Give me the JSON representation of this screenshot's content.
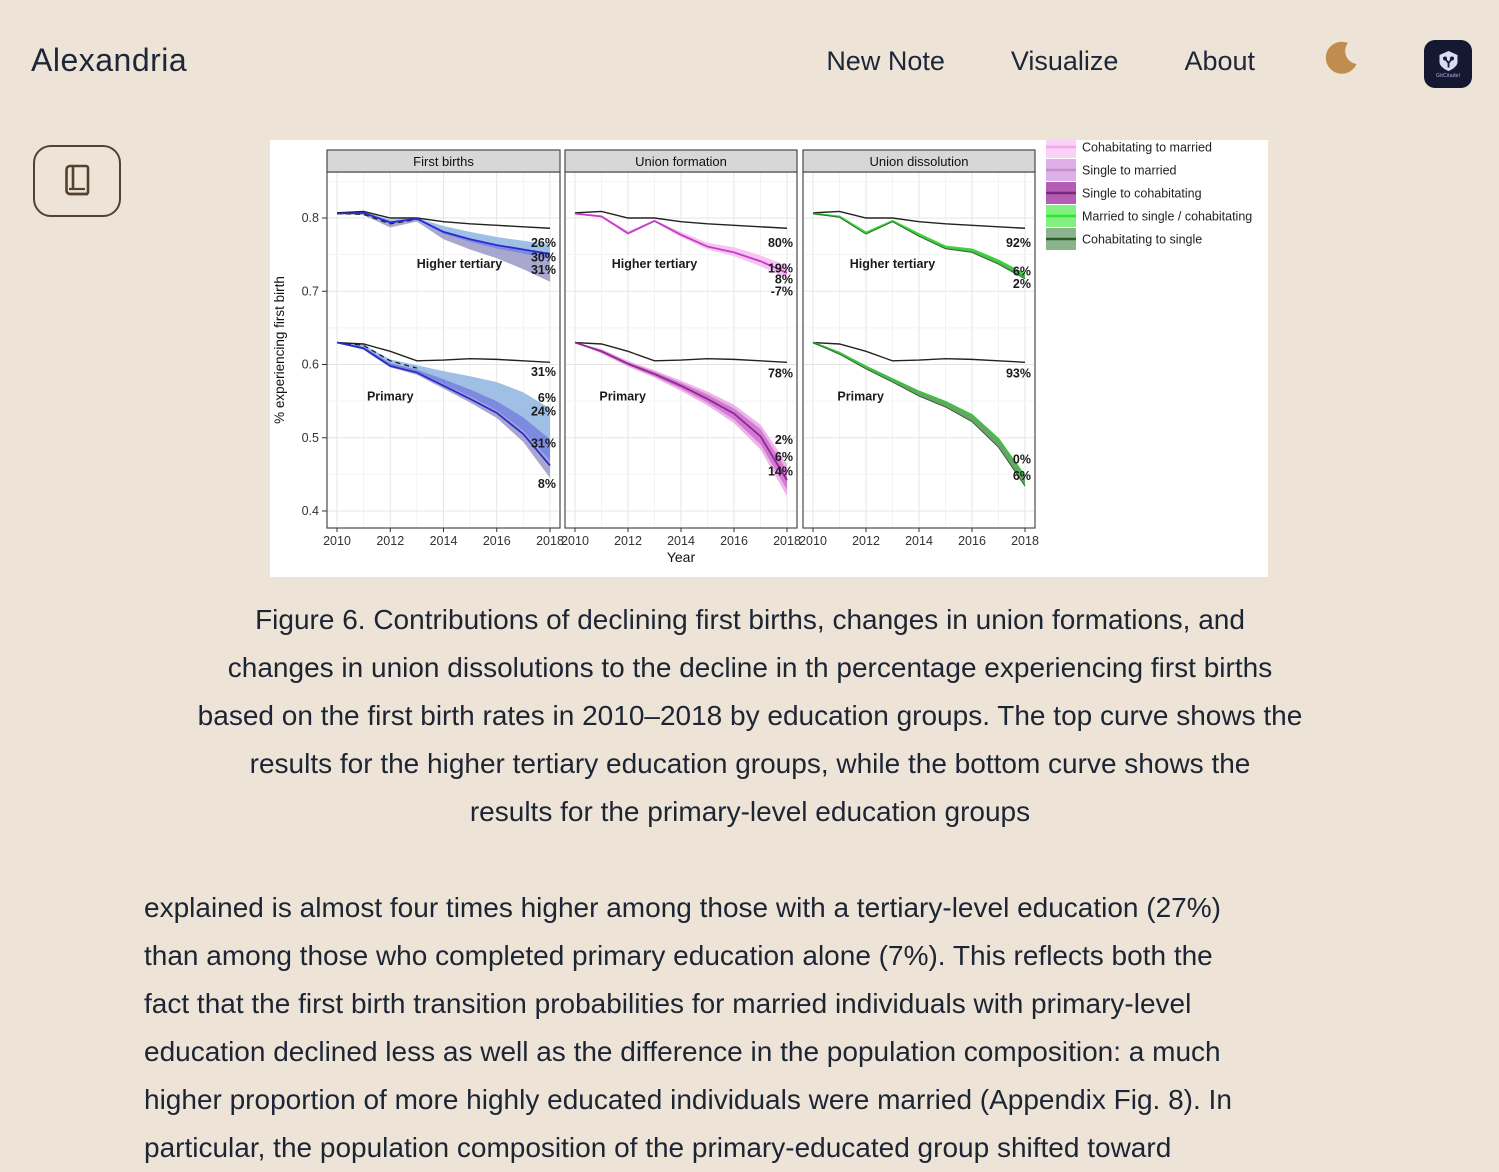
{
  "page": {
    "background": "#ede3d6",
    "text_color": "#1c2534"
  },
  "header": {
    "brand": "Alexandria",
    "nav": [
      {
        "id": "new-note",
        "label": "New Note"
      },
      {
        "id": "visualize",
        "label": "Visualize"
      },
      {
        "id": "about",
        "label": "About"
      }
    ],
    "theme_toggle": {
      "icon": "moon-icon",
      "color": "#c08d4e"
    },
    "app_badge": {
      "label": "GitCitadel",
      "bg": "#141831",
      "fg": "#b9b7ee",
      "icon": "shield-logo-icon"
    }
  },
  "sidebar": {
    "reader_button": {
      "icon": "book-icon",
      "border_color": "#54422e"
    }
  },
  "chart_data": {
    "type": "line",
    "xlabel": "Year",
    "ylabel": "% experiencing first birth",
    "x": [
      2010,
      2011,
      2012,
      2013,
      2014,
      2015,
      2016,
      2017,
      2018
    ],
    "xticks": [
      2010,
      2012,
      2014,
      2016,
      2018
    ],
    "yticks": [
      0.4,
      0.5,
      0.6,
      0.7,
      0.8
    ],
    "ylim": [
      0.377,
      0.863
    ],
    "grid": true,
    "panels": [
      {
        "title": "First births",
        "groups": [
          {
            "name": "Higher tertiary",
            "name_pos": {
              "year": 2014.6,
              "v": 0.737
            },
            "reference": {
              "color": "#222222",
              "values": [
                0.807,
                0.809,
                0.8,
                0.8,
                0.795,
                0.792,
                0.79,
                0.788,
                0.786
              ]
            },
            "dashed": {
              "color": "#222222",
              "years": [
                2010,
                2011,
                2012,
                2013
              ],
              "values": [
                0.806,
                0.805,
                0.792,
                0.798
              ]
            },
            "bands": [
              {
                "fill": "#9fc0e4",
                "opacity": 1,
                "upper": [
                  0.807,
                  0.809,
                  0.798,
                  0.8,
                  0.789,
                  0.781,
                  0.774,
                  0.769,
                  0.764
                ],
                "lower": [
                  0.806,
                  0.807,
                  0.794,
                  0.799,
                  0.782,
                  0.772,
                  0.764,
                  0.758,
                  0.752
                ]
              },
              {
                "fill": "#5b6ed8",
                "opacity": 0.8,
                "upper": [
                  0.806,
                  0.807,
                  0.794,
                  0.799,
                  0.782,
                  0.772,
                  0.764,
                  0.758,
                  0.752
                ],
                "lower": [
                  0.806,
                  0.806,
                  0.792,
                  0.798,
                  0.778,
                  0.767,
                  0.758,
                  0.751,
                  0.744
                ]
              },
              {
                "fill": "#9e9dc8",
                "opacity": 0.9,
                "upper": [
                  0.806,
                  0.806,
                  0.792,
                  0.798,
                  0.778,
                  0.767,
                  0.758,
                  0.751,
                  0.744
                ],
                "lower": [
                  0.806,
                  0.804,
                  0.787,
                  0.795,
                  0.771,
                  0.757,
                  0.745,
                  0.73,
                  0.713
                ]
              }
            ],
            "lines": [
              {
                "color": "#2a2ad2",
                "width": 1.8,
                "values": [
                  0.806,
                  0.807,
                  0.794,
                  0.799,
                  0.781,
                  0.771,
                  0.763,
                  0.757,
                  0.751
                ]
              }
            ],
            "end_labels": [
              {
                "text": "26%",
                "v": 0.766
              },
              {
                "text": "30%",
                "v": 0.746
              },
              {
                "text": "31%",
                "v": 0.729
              }
            ]
          },
          {
            "name": "Primary",
            "name_pos": {
              "year": 2012.0,
              "v": 0.556
            },
            "reference": {
              "color": "#222222",
              "values": [
                0.63,
                0.628,
                0.618,
                0.605,
                0.606,
                0.608,
                0.607,
                0.605,
                0.603
              ]
            },
            "dashed": {
              "color": "#222222",
              "years": [
                2010,
                2011,
                2012,
                2013
              ],
              "values": [
                0.63,
                0.626,
                0.605,
                0.595
              ]
            },
            "bands": [
              {
                "fill": "#9fc0e4",
                "opacity": 1,
                "upper": [
                  0.63,
                  0.627,
                  0.607,
                  0.599,
                  0.591,
                  0.584,
                  0.576,
                  0.562,
                  0.54
                ],
                "lower": [
                  0.63,
                  0.624,
                  0.602,
                  0.593,
                  0.58,
                  0.566,
                  0.55,
                  0.528,
                  0.498
                ]
              },
              {
                "fill": "#5b6ed8",
                "opacity": 0.8,
                "upper": [
                  0.63,
                  0.624,
                  0.602,
                  0.593,
                  0.58,
                  0.566,
                  0.55,
                  0.528,
                  0.498
                ],
                "lower": [
                  0.63,
                  0.622,
                  0.599,
                  0.59,
                  0.573,
                  0.556,
                  0.537,
                  0.509,
                  0.468
                ]
              },
              {
                "fill": "#9e9dc8",
                "opacity": 0.9,
                "upper": [
                  0.63,
                  0.622,
                  0.599,
                  0.59,
                  0.573,
                  0.556,
                  0.537,
                  0.509,
                  0.468
                ],
                "lower": [
                  0.63,
                  0.62,
                  0.596,
                  0.586,
                  0.567,
                  0.548,
                  0.527,
                  0.494,
                  0.445
                ]
              }
            ],
            "lines": [
              {
                "color": "#2a2ad2",
                "width": 1.8,
                "values": [
                  0.63,
                  0.622,
                  0.598,
                  0.589,
                  0.571,
                  0.553,
                  0.534,
                  0.505,
                  0.462
                ]
              }
            ],
            "end_labels": [
              {
                "text": "31%",
                "v": 0.59
              },
              {
                "text": "6%",
                "v": 0.554
              },
              {
                "text": "24%",
                "v": 0.536
              },
              {
                "text": "31%",
                "v": 0.492
              },
              {
                "text": "8%",
                "v": 0.437
              }
            ]
          }
        ]
      },
      {
        "title": "Union formation",
        "groups": [
          {
            "name": "Higher tertiary",
            "name_pos": {
              "year": 2013.0,
              "v": 0.737
            },
            "reference": {
              "color": "#222222",
              "values": [
                0.807,
                0.809,
                0.8,
                0.8,
                0.795,
                0.792,
                0.79,
                0.788,
                0.786
              ]
            },
            "bands": [
              {
                "fill": "#f7c3f2",
                "opacity": 1,
                "upper": [
                  0.807,
                  0.804,
                  0.782,
                  0.797,
                  0.781,
                  0.766,
                  0.76,
                  0.749,
                  0.735
                ],
                "lower": [
                  0.806,
                  0.801,
                  0.777,
                  0.795,
                  0.774,
                  0.757,
                  0.748,
                  0.734,
                  0.717
                ]
              }
            ],
            "lines": [
              {
                "color": "#c43bc4",
                "width": 1.8,
                "values": [
                  0.806,
                  0.802,
                  0.779,
                  0.796,
                  0.777,
                  0.761,
                  0.753,
                  0.741,
                  0.725
                ]
              }
            ],
            "end_labels": [
              {
                "text": "80%",
                "v": 0.766
              },
              {
                "text": "19%",
                "v": 0.731
              },
              {
                "text": "8%",
                "v": 0.716
              },
              {
                "text": "-7%",
                "v": 0.7
              }
            ]
          },
          {
            "name": "Primary",
            "name_pos": {
              "year": 2011.8,
              "v": 0.556
            },
            "reference": {
              "color": "#222222",
              "values": [
                0.63,
                0.628,
                0.618,
                0.605,
                0.606,
                0.608,
                0.607,
                0.605,
                0.603
              ]
            },
            "bands": [
              {
                "fill": "#eeb4ea",
                "opacity": 1,
                "upper": [
                  0.63,
                  0.621,
                  0.605,
                  0.592,
                  0.578,
                  0.563,
                  0.545,
                  0.518,
                  0.464
                ],
                "lower": [
                  0.63,
                  0.615,
                  0.597,
                  0.582,
                  0.564,
                  0.544,
                  0.52,
                  0.484,
                  0.42
                ]
              },
              {
                "fill": "#d27bd4",
                "opacity": 1,
                "upper": [
                  0.63,
                  0.62,
                  0.603,
                  0.59,
                  0.575,
                  0.559,
                  0.54,
                  0.512,
                  0.455
                ],
                "lower": [
                  0.63,
                  0.616,
                  0.599,
                  0.584,
                  0.567,
                  0.548,
                  0.525,
                  0.491,
                  0.429
                ]
              }
            ],
            "lines": [
              {
                "color": "#8f2a8f",
                "width": 1.8,
                "values": [
                  0.63,
                  0.618,
                  0.601,
                  0.587,
                  0.571,
                  0.553,
                  0.533,
                  0.502,
                  0.442
                ]
              }
            ],
            "end_labels": [
              {
                "text": "78%",
                "v": 0.588
              },
              {
                "text": "2%",
                "v": 0.497
              },
              {
                "text": "6%",
                "v": 0.474
              },
              {
                "text": "14%",
                "v": 0.454
              }
            ]
          }
        ]
      },
      {
        "title": "Union dissolution",
        "groups": [
          {
            "name": "Higher tertiary",
            "name_pos": {
              "year": 2013.0,
              "v": 0.737
            },
            "reference": {
              "color": "#222222",
              "values": [
                0.807,
                0.809,
                0.8,
                0.8,
                0.795,
                0.792,
                0.79,
                0.788,
                0.786
              ]
            },
            "bands": [
              {
                "fill": "#56b356",
                "opacity": 1,
                "upper": [
                  0.806,
                  0.802,
                  0.78,
                  0.796,
                  0.778,
                  0.761,
                  0.757,
                  0.742,
                  0.723
                ],
                "lower": [
                  0.806,
                  0.801,
                  0.778,
                  0.795,
                  0.775,
                  0.758,
                  0.753,
                  0.737,
                  0.717
                ]
              }
            ],
            "lines": [
              {
                "color": "#38d638",
                "width": 2.0,
                "values": [
                  0.806,
                  0.802,
                  0.78,
                  0.796,
                  0.778,
                  0.761,
                  0.757,
                  0.742,
                  0.723
                ]
              },
              {
                "color": "#2d6b2d",
                "width": 1.0,
                "values": [
                  0.806,
                  0.801,
                  0.778,
                  0.795,
                  0.775,
                  0.758,
                  0.753,
                  0.737,
                  0.717
                ]
              }
            ],
            "end_labels": [
              {
                "text": "92%",
                "v": 0.766
              },
              {
                "text": "6%",
                "v": 0.727
              },
              {
                "text": "2%",
                "v": 0.71
              }
            ]
          },
          {
            "name": "Primary",
            "name_pos": {
              "year": 2011.8,
              "v": 0.556
            },
            "reference": {
              "color": "#222222",
              "values": [
                0.63,
                0.628,
                0.618,
                0.605,
                0.606,
                0.608,
                0.607,
                0.605,
                0.603
              ]
            },
            "bands": [
              {
                "fill": "#6f9f6f",
                "opacity": 1,
                "upper": [
                  0.63,
                  0.616,
                  0.597,
                  0.58,
                  0.563,
                  0.549,
                  0.531,
                  0.498,
                  0.447
                ],
                "lower": [
                  0.63,
                  0.614,
                  0.594,
                  0.576,
                  0.557,
                  0.542,
                  0.522,
                  0.487,
                  0.434
                ]
              }
            ],
            "lines": [
              {
                "color": "#3bc43b",
                "width": 2.0,
                "values": [
                  0.63,
                  0.616,
                  0.597,
                  0.58,
                  0.563,
                  0.549,
                  0.531,
                  0.498,
                  0.447
                ]
              },
              {
                "color": "#2d6b2d",
                "width": 1.0,
                "values": [
                  0.63,
                  0.614,
                  0.594,
                  0.576,
                  0.557,
                  0.542,
                  0.522,
                  0.487,
                  0.434
                ]
              }
            ],
            "end_labels": [
              {
                "text": "93%",
                "v": 0.588
              },
              {
                "text": "0%",
                "v": 0.47
              },
              {
                "text": "6%",
                "v": 0.448
              }
            ]
          }
        ]
      }
    ],
    "legend": {
      "position": "top-right",
      "items": [
        {
          "label": "Cohabitating to married",
          "fill": "#fbd2f7",
          "line": "#f3a6ee"
        },
        {
          "label": "Single to married",
          "fill": "#ddb1e6",
          "line": "#c78bd4"
        },
        {
          "label": "Single to cohabitating",
          "fill": "#b55cb5",
          "line": "#7d287d"
        },
        {
          "label": "Married to single / cohabitating",
          "fill": "#82f182",
          "line": "#2fe62f"
        },
        {
          "label": "Cohabitating to single",
          "fill": "#8cb48c",
          "line": "#2d5c2d"
        }
      ]
    }
  },
  "caption": {
    "lines": [
      "Figure 6. Contributions of declining first births, changes in union formations, and",
      "changes in union dissolutions to the decline in th percentage experiencing first births",
      "based on the first birth rates in 2010–2018 by education groups. The top curve shows the",
      "results for the higher tertiary education groups, while the bottom curve shows the",
      "results for the primary-level education groups"
    ]
  },
  "article": {
    "lines": [
      "explained is almost four times higher among those with a tertiary-level education (27%)",
      "than among those who completed primary education alone (7%). This reflects both the",
      "fact that the first birth transition probabilities for married individuals with primary-level",
      "education declined less as well as the difference in the population composition: a much",
      "higher proportion of more highly educated individuals were married (Appendix Fig. 8). In"
    ],
    "partial_line": "particular, the population composition of the primary-educated group shifted toward"
  }
}
